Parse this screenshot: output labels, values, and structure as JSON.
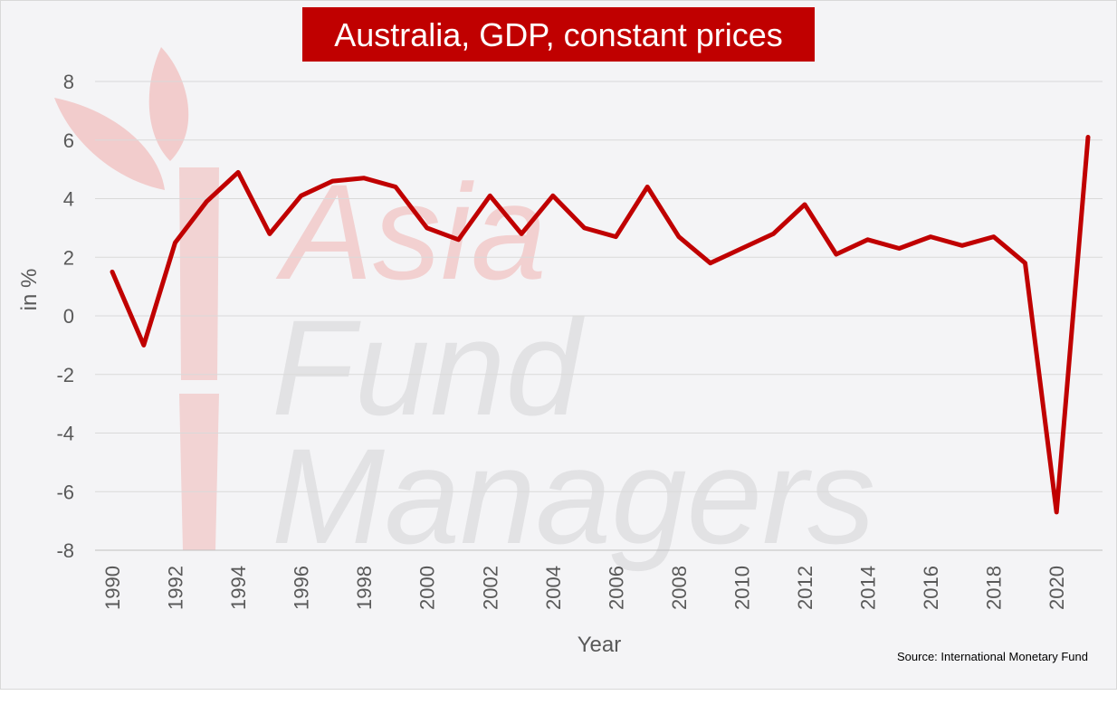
{
  "chart_data": {
    "type": "line",
    "title": "Australia, GDP, constant prices",
    "xlabel": "Year",
    "ylabel": "in %",
    "ylim": [
      -8,
      8
    ],
    "yticks": [
      8,
      6,
      4,
      2,
      0,
      -2,
      -4,
      -6,
      -8
    ],
    "xlim": [
      1990,
      2021
    ],
    "xticks": [
      1990,
      1992,
      1994,
      1996,
      1998,
      2000,
      2002,
      2004,
      2006,
      2008,
      2010,
      2012,
      2014,
      2016,
      2018,
      2020
    ],
    "grid": true,
    "source": "Source: International Monetary Fund",
    "line_color": "#c00000",
    "title_bg": "#c00000",
    "series": [
      {
        "x": [
          1990,
          1991,
          1992,
          1993,
          1994,
          1995,
          1996,
          1997,
          1998,
          1999,
          2000,
          2001,
          2002,
          2003,
          2004,
          2005,
          2006,
          2007,
          2008,
          2009,
          2010,
          2011,
          2012,
          2013,
          2014,
          2015,
          2016,
          2017,
          2018,
          2019,
          2020,
          2021
        ],
        "values": [
          1.5,
          -1.0,
          2.5,
          3.9,
          4.9,
          2.8,
          4.1,
          4.6,
          4.7,
          4.4,
          3.0,
          2.6,
          4.1,
          2.8,
          4.1,
          3.0,
          2.7,
          4.4,
          2.7,
          1.8,
          2.3,
          2.8,
          3.8,
          2.1,
          2.6,
          2.3,
          2.7,
          2.4,
          2.7,
          1.8,
          -6.7,
          6.1
        ]
      }
    ]
  },
  "watermark": {
    "line1": "Asia",
    "line2": "Fund",
    "line3": "Managers"
  }
}
